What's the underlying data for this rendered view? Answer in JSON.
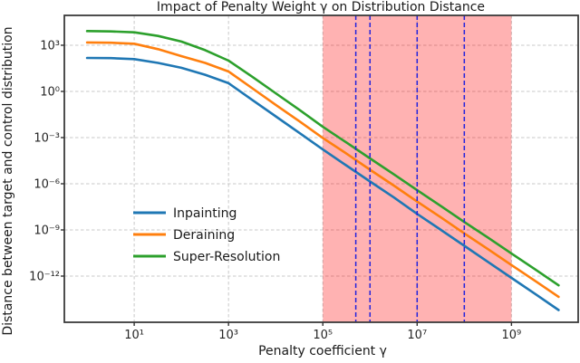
{
  "chart_data": {
    "type": "line",
    "title": "Impact of Penalty Weight γ on Distribution Distance",
    "xlabel": "Penalty coefficient γ",
    "ylabel": "Distance between target and control distribution",
    "x_scale": "log",
    "y_scale": "log",
    "xlim": [
      0.33,
      26000000000
    ],
    "ylim": [
      1e-15,
      87000
    ],
    "grid": true,
    "legend_position": "lower left inside plot",
    "x_ticks": [
      {
        "v": 10,
        "label": "10¹"
      },
      {
        "v": 1000,
        "label": "10³"
      },
      {
        "v": 100000,
        "label": "10⁵"
      },
      {
        "v": 10000000,
        "label": "10⁷"
      },
      {
        "v": 1000000000,
        "label": "10⁹"
      }
    ],
    "y_ticks": [
      {
        "v": 1000,
        "label": "10³"
      },
      {
        "v": 1,
        "label": "10⁰"
      },
      {
        "v": 0.001,
        "label": "10⁻³"
      },
      {
        "v": 1e-06,
        "label": "10⁻⁶"
      },
      {
        "v": 1e-09,
        "label": "10⁻⁹"
      },
      {
        "v": 1e-12,
        "label": "10⁻¹²"
      }
    ],
    "x": [
      1,
      3.2,
      10,
      32,
      100,
      320,
      1000,
      3200,
      10000,
      32000,
      100000,
      320000,
      1000000,
      3200000,
      10000000,
      32000000,
      100000000,
      320000000,
      1000000000,
      3200000000,
      10000000000
    ],
    "series": [
      {
        "name": "Inpainting",
        "color": "#1f77b4",
        "y": [
          150,
          145,
          126,
          71,
          34,
          12,
          3.4,
          0.28,
          0.024,
          0.002,
          0.00017,
          1.5e-05,
          1.4e-06,
          1.3e-07,
          1.1e-08,
          1e-09,
          9.3e-11,
          8.3e-12,
          7.6e-13,
          6.8e-14,
          6.2e-15
        ]
      },
      {
        "name": "Deraining",
        "color": "#ff7f0e",
        "y": [
          1510,
          1450,
          1260,
          560,
          195,
          71,
          19.5,
          1.6,
          0.135,
          0.0112,
          0.00095,
          8.9e-05,
          8.1e-06,
          7.6e-07,
          6.9e-08,
          6.5e-09,
          6e-10,
          5.6e-11,
          5.2e-12,
          4.8e-13,
          4.5e-14
        ]
      },
      {
        "name": "Super-Resolution",
        "color": "#2ca02c",
        "y": [
          8300,
          7900,
          6900,
          4000,
          1740,
          480,
          100,
          8.9,
          0.76,
          0.063,
          0.005,
          0.00047,
          4.4e-05,
          4.1e-06,
          3.8e-07,
          3.5e-08,
          3.3e-09,
          3.1e-10,
          2.9e-11,
          2.7e-12,
          2.5e-13
        ]
      }
    ],
    "highlight_region": {
      "x_start": 100000,
      "x_end": 1000000000,
      "color": "#ff0000",
      "opacity": 0.3
    },
    "vlines": {
      "values": [
        500000,
        1000000,
        10000000,
        100000000
      ],
      "color": "#2222dd",
      "style": "dashed"
    },
    "grid_color": "#c8c8c8",
    "spine_color": "#3a3a3a"
  }
}
